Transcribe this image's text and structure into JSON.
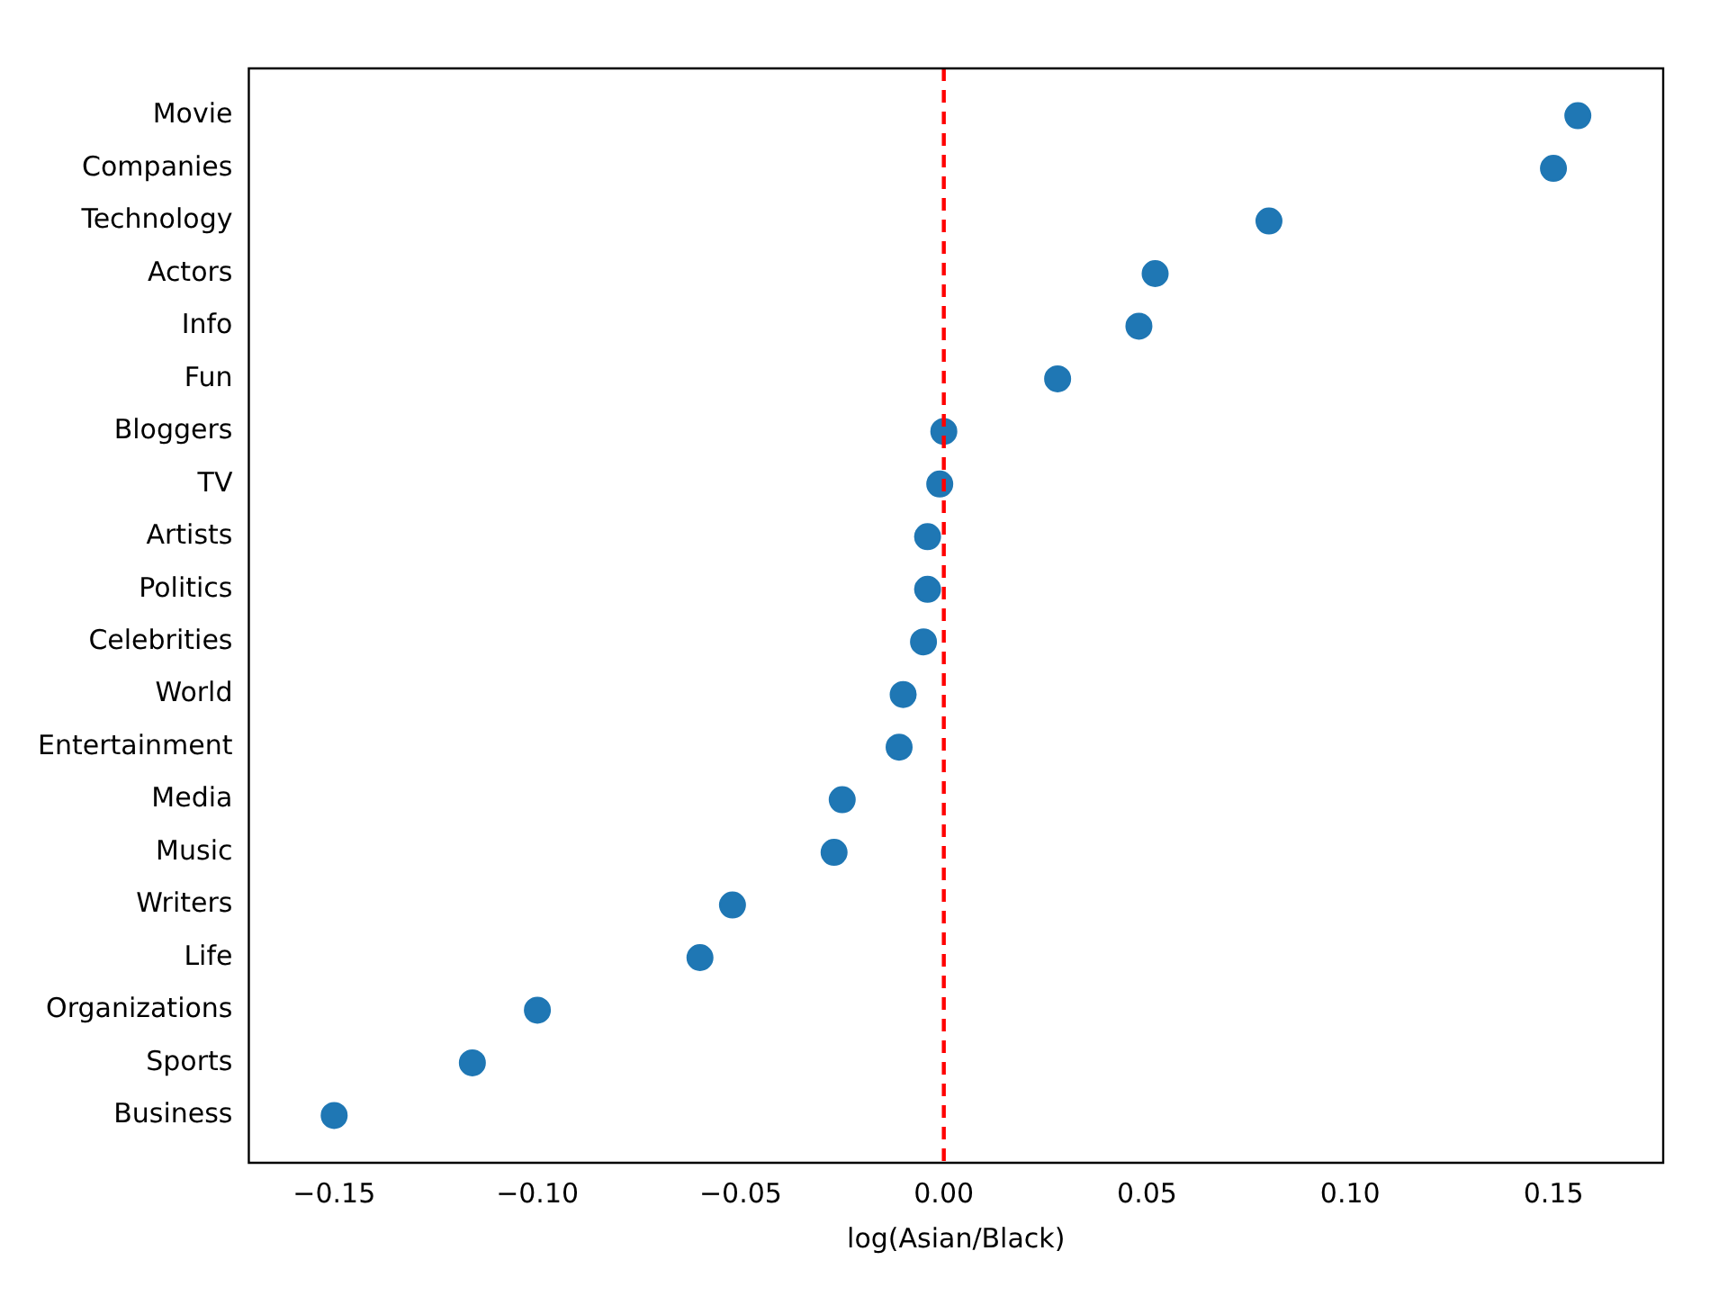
{
  "chart_data": {
    "type": "scatter",
    "orientation": "horizontal",
    "xlabel": "log(Asian/Black)",
    "categories": [
      "Movie",
      "Companies",
      "Technology",
      "Actors",
      "Info",
      "Fun",
      "Bloggers",
      "TV",
      "Artists",
      "Politics",
      "Celebrities",
      "World",
      "Entertainment",
      "Media",
      "Music",
      "Writers",
      "Life",
      "Organizations",
      "Sports",
      "Business"
    ],
    "values": [
      0.156,
      0.15,
      0.08,
      0.052,
      0.048,
      0.028,
      0.0,
      -0.001,
      -0.004,
      -0.004,
      -0.005,
      -0.01,
      -0.011,
      -0.025,
      -0.027,
      -0.052,
      -0.06,
      -0.1,
      -0.116,
      -0.15
    ],
    "color": "#1f77b4",
    "marker": "circle",
    "xlim": [
      -0.171,
      0.177
    ],
    "xticks": [
      {
        "value": -0.15,
        "label": "−0.15"
      },
      {
        "value": -0.1,
        "label": "−0.10"
      },
      {
        "value": -0.05,
        "label": "−0.05"
      },
      {
        "value": 0,
        "label": "0.00"
      },
      {
        "value": 0.05,
        "label": "0.05"
      },
      {
        "value": 0.1,
        "label": "0.10"
      },
      {
        "value": 0.15,
        "label": "0.15"
      }
    ],
    "ref_lines": [
      {
        "axis": "x",
        "value": 0,
        "color": "#ff0000",
        "line_style": "dashed"
      }
    ]
  }
}
